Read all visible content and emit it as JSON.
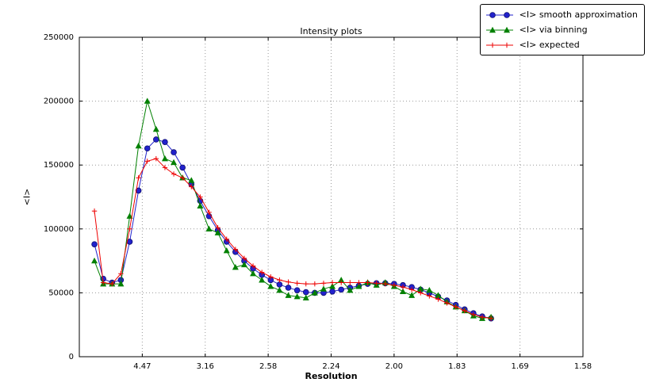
{
  "figure": {
    "title": "Intensity plots",
    "xlabel": "Resolution",
    "ylabel": "<I>"
  },
  "chart_data": {
    "type": "line",
    "title": "Intensity plots",
    "xlabel": "Resolution",
    "ylabel": "<I>",
    "grid": true,
    "legend_position": "upper right",
    "x_axis": {
      "range": [
        0,
        0.4
      ],
      "tick_positions": [
        0.05,
        0.1,
        0.15,
        0.2,
        0.25,
        0.3,
        0.35,
        0.4
      ],
      "tick_labels": [
        "4.47",
        "3.16",
        "2.58",
        "2.24",
        "2.00",
        "1.83",
        "1.69",
        "1.58"
      ]
    },
    "y_axis": {
      "range": [
        0,
        250000
      ],
      "tick_positions": [
        0,
        50000,
        100000,
        150000,
        200000,
        250000
      ],
      "tick_labels": [
        "0",
        "50000",
        "100000",
        "150000",
        "200000",
        "250000"
      ]
    },
    "x": [
      0.012,
      0.019,
      0.026,
      0.033,
      0.04,
      0.047,
      0.054,
      0.061,
      0.068,
      0.075,
      0.082,
      0.089,
      0.096,
      0.103,
      0.11,
      0.117,
      0.124,
      0.131,
      0.138,
      0.145,
      0.152,
      0.159,
      0.166,
      0.173,
      0.18,
      0.187,
      0.194,
      0.201,
      0.208,
      0.215,
      0.222,
      0.229,
      0.236,
      0.243,
      0.25,
      0.257,
      0.264,
      0.271,
      0.278,
      0.285,
      0.292,
      0.299,
      0.306,
      0.313,
      0.32,
      0.327
    ],
    "series": [
      {
        "name": "<I> smooth approximation",
        "color": "#2222cc",
        "marker": "circle",
        "values": [
          88000,
          61000,
          58000,
          60000,
          90000,
          130000,
          163000,
          170000,
          168000,
          160000,
          148000,
          135000,
          122000,
          110000,
          99000,
          90000,
          82000,
          75000,
          69000,
          64000,
          60000,
          56500,
          54000,
          52000,
          50500,
          50000,
          50000,
          51000,
          52500,
          54000,
          55500,
          57000,
          57500,
          57500,
          57000,
          56000,
          54500,
          52500,
          50000,
          47000,
          44000,
          40500,
          37000,
          34000,
          31500,
          30000
        ]
      },
      {
        "name": "<I> via binning",
        "color": "#008000",
        "marker": "triangle",
        "values": [
          75000,
          57000,
          57000,
          57000,
          110000,
          165000,
          200000,
          178000,
          155000,
          152000,
          140000,
          138000,
          118000,
          100000,
          97000,
          83000,
          70000,
          72000,
          65000,
          60000,
          55000,
          52000,
          48000,
          47000,
          46000,
          50000,
          53000,
          55000,
          60000,
          52000,
          55000,
          58000,
          56000,
          58000,
          55000,
          51000,
          48000,
          53000,
          52000,
          48000,
          43000,
          39000,
          36000,
          32000,
          30000,
          31000
        ]
      },
      {
        "name": "<I> expected",
        "color": "#ee0000",
        "marker": "plus",
        "values": [
          114000,
          58000,
          57000,
          65000,
          100000,
          140000,
          153000,
          155000,
          148000,
          143000,
          140000,
          133000,
          125000,
          113000,
          101000,
          92000,
          84000,
          77000,
          71000,
          66000,
          62500,
          60000,
          58500,
          57500,
          57000,
          57000,
          57500,
          58000,
          58000,
          58000,
          58000,
          58000,
          57500,
          57000,
          56000,
          54500,
          52500,
          50000,
          47500,
          45000,
          42000,
          39000,
          36000,
          33000,
          31000,
          30000
        ]
      }
    ]
  }
}
